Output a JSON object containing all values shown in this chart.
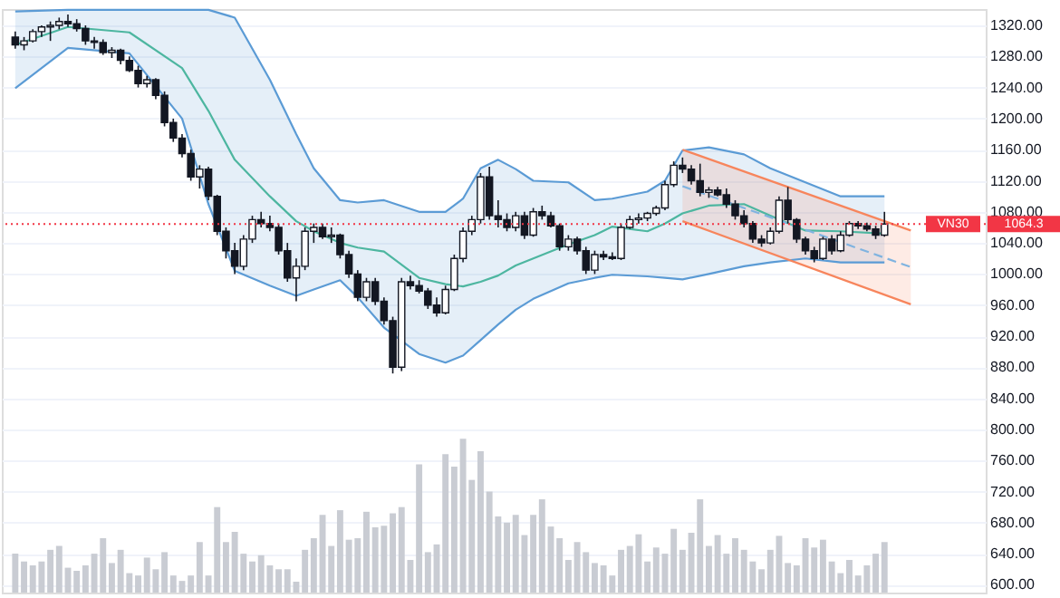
{
  "chart_data": {
    "type": "candlestick",
    "categories": [
      null,
      null,
      null,
      null,
      null,
      null,
      null,
      null,
      null,
      null,
      null,
      null,
      null,
      null,
      null,
      null,
      null,
      null,
      null,
      null,
      null,
      null,
      null,
      null,
      null,
      null,
      null,
      null,
      null,
      null,
      null,
      null,
      null,
      null,
      null,
      null,
      null,
      null,
      null,
      null,
      null,
      null,
      null,
      null,
      null,
      null,
      null,
      null,
      null,
      null,
      null,
      null,
      null,
      null,
      null,
      null,
      null,
      null,
      null,
      null,
      null,
      null,
      null,
      null,
      null,
      null,
      null,
      null,
      null,
      null,
      null,
      null,
      null,
      null,
      null,
      null,
      null,
      null,
      null,
      null,
      null,
      null,
      null,
      null,
      null,
      null,
      null,
      null,
      null,
      null,
      null,
      null,
      null,
      null,
      null,
      null,
      null,
      null,
      null,
      null,
      null,
      null,
      null,
      null,
      null,
      null,
      null,
      null,
      null,
      null
    ],
    "ylim": [
      590,
      1341
    ],
    "yticks": [
      {
        "value": 600,
        "label": "600.00"
      },
      {
        "value": 640,
        "label": "640.00"
      },
      {
        "value": 680,
        "label": "680.00"
      },
      {
        "value": 720,
        "label": "720.00"
      },
      {
        "value": 760,
        "label": "760.00"
      },
      {
        "value": 800,
        "label": "800.00"
      },
      {
        "value": 840,
        "label": "840.00"
      },
      {
        "value": 880,
        "label": "880.00"
      },
      {
        "value": 920,
        "label": "920.00"
      },
      {
        "value": 960,
        "label": "960.00"
      },
      {
        "value": 1000,
        "label": "1000.00"
      },
      {
        "value": 1040,
        "label": "1040.00"
      },
      {
        "value": 1080,
        "label": "1080.00"
      },
      {
        "value": 1120,
        "label": "1120.00"
      },
      {
        "value": 1160,
        "label": "1160.00"
      },
      {
        "value": 1200,
        "label": "1200.00"
      },
      {
        "value": 1240,
        "label": "1240.00"
      },
      {
        "value": 1280,
        "label": "1280.00"
      },
      {
        "value": 1320,
        "label": "1320.00"
      }
    ],
    "tick_labels": "y",
    "grid": "y",
    "ref_lines": [
      {
        "axis": "y",
        "value": 1064.3,
        "label": "VN30",
        "color": "#f23645",
        "line_style": "dotted"
      }
    ],
    "annotations": [
      "1064.3"
    ],
    "series": [
      {
        "type": "line",
        "color": "#5b9bd5",
        "values": [
          1338,
          null,
          null,
          null,
          null,
          null,
          1340,
          null,
          null,
          null,
          null,
          null,
          null,
          1340,
          null,
          null,
          null,
          null,
          null,
          1340,
          null,
          null,
          1340,
          null,
          null,
          1330,
          null,
          null,
          null,
          1250,
          null,
          null,
          1180,
          null,
          1136,
          null,
          null,
          1095,
          null,
          1092,
          null,
          null,
          1095,
          null,
          null,
          null,
          1080,
          null,
          null,
          1080,
          null,
          1097,
          null,
          1136,
          null,
          1147,
          null,
          1135,
          null,
          1120,
          null,
          null,
          null,
          1118,
          null,
          null,
          1095,
          null,
          1097,
          null,
          null,
          null,
          1106,
          null,
          1120,
          null,
          1159,
          null,
          null,
          1163,
          null,
          null,
          null,
          1154,
          null,
          null,
          1136,
          null,
          null,
          null,
          1118,
          null,
          null,
          null,
          1100,
          null,
          null,
          null,
          null,
          1100,
          null,
          null,
          null,
          null,
          null,
          null,
          null,
          null,
          null,
          null
        ],
        "lower": [
          1239,
          null,
          null,
          null,
          null,
          null,
          1291,
          null,
          null,
          null,
          null,
          null,
          null,
          1284,
          null,
          null,
          null,
          null,
          null,
          1200,
          null,
          null,
          1090,
          null,
          null,
          1004,
          null,
          null,
          null,
          985,
          null,
          null,
          972,
          null,
          980,
          null,
          null,
          992,
          null,
          970,
          null,
          null,
          931,
          null,
          null,
          null,
          897,
          null,
          null,
          886,
          null,
          895,
          null,
          915,
          null,
          935,
          null,
          954,
          null,
          968,
          null,
          null,
          null,
          988,
          null,
          null,
          995,
          null,
          999,
          null,
          null,
          null,
          997,
          null,
          995,
          null,
          993,
          null,
          null,
          1000,
          null,
          null,
          null,
          1010,
          null,
          null,
          1015,
          null,
          null,
          null,
          1020,
          null,
          null,
          null,
          1015,
          null,
          null,
          null,
          null,
          1015,
          null,
          null,
          null,
          null,
          null,
          null,
          null,
          null,
          null,
          null
        ],
        "upper": [
          1338,
          null,
          null,
          null,
          null,
          null,
          1340,
          null,
          null,
          null,
          null,
          null,
          null,
          1340,
          null,
          null,
          null,
          null,
          null,
          1340,
          null,
          null,
          1340,
          null,
          null,
          1330,
          null,
          null,
          null,
          1250,
          null,
          null,
          1180,
          null,
          1136,
          null,
          null,
          1095,
          null,
          1092,
          null,
          null,
          1095,
          null,
          null,
          null,
          1080,
          null,
          null,
          1080,
          null,
          1097,
          null,
          1136,
          null,
          1147,
          null,
          1135,
          null,
          1120,
          null,
          null,
          null,
          1118,
          null,
          null,
          1095,
          null,
          1097,
          null,
          null,
          null,
          1106,
          null,
          1120,
          null,
          1159,
          null,
          null,
          1163,
          null,
          null,
          null,
          1154,
          null,
          null,
          1136,
          null,
          null,
          null,
          1118,
          null,
          null,
          null,
          1100,
          null,
          null,
          null,
          null,
          1100,
          null,
          null,
          null,
          null,
          null,
          null,
          null,
          null,
          null,
          null
        ]
      },
      {
        "type": "line",
        "color": "#5b9bd5",
        "values": [
          1239,
          null,
          null,
          null,
          null,
          null,
          1291,
          null,
          null,
          null,
          null,
          null,
          null,
          1284,
          null,
          null,
          null,
          null,
          null,
          1200,
          null,
          null,
          1090,
          null,
          null,
          1004,
          null,
          null,
          null,
          985,
          null,
          null,
          972,
          null,
          980,
          null,
          null,
          992,
          null,
          970,
          null,
          null,
          931,
          null,
          null,
          null,
          897,
          null,
          null,
          886,
          null,
          895,
          null,
          915,
          null,
          935,
          null,
          954,
          null,
          968,
          null,
          null,
          null,
          988,
          null,
          null,
          995,
          null,
          999,
          null,
          null,
          null,
          997,
          null,
          995,
          null,
          993,
          null,
          null,
          1000,
          null,
          null,
          null,
          1010,
          null,
          null,
          1015,
          null,
          null,
          null,
          1020,
          null,
          null,
          null,
          1015,
          null,
          null,
          null,
          null,
          1015,
          null,
          null,
          null,
          null,
          null,
          null,
          null,
          null,
          null,
          null
        ]
      },
      {
        "type": "line",
        "color": "#4db6a0",
        "values": [
          1295,
          null,
          null,
          null,
          null,
          null,
          1318,
          null,
          null,
          null,
          null,
          null,
          null,
          1311,
          null,
          null,
          null,
          null,
          null,
          1265,
          null,
          null,
          1210,
          null,
          null,
          1147,
          null,
          null,
          null,
          1100,
          null,
          null,
          1068,
          null,
          1055,
          null,
          null,
          1040,
          null,
          1034,
          null,
          null,
          1029,
          null,
          null,
          null,
          995,
          null,
          null,
          987,
          null,
          984,
          null,
          990,
          null,
          998,
          null,
          1011,
          null,
          1020,
          null,
          null,
          null,
          1038,
          null,
          null,
          1050,
          null,
          1061,
          null,
          null,
          null,
          1055,
          null,
          1065,
          null,
          1078,
          null,
          null,
          1088,
          null,
          null,
          null,
          1090,
          null,
          null,
          1075,
          null,
          null,
          null,
          1056,
          null,
          null,
          null,
          1055,
          null,
          null,
          null,
          null,
          1052,
          null,
          null,
          null,
          null,
          null,
          null,
          null,
          null,
          null,
          null
        ]
      },
      {
        "type": "line",
        "color": "#f7855c",
        "values": [
          null,
          null,
          null,
          null,
          null,
          null,
          null,
          null,
          null,
          null,
          null,
          null,
          null,
          null,
          null,
          null,
          null,
          null,
          null,
          null,
          null,
          null,
          null,
          null,
          null,
          null,
          null,
          null,
          null,
          null,
          null,
          null,
          null,
          null,
          null,
          null,
          null,
          null,
          null,
          null,
          null,
          null,
          null,
          null,
          null,
          null,
          null,
          null,
          null,
          null,
          null,
          null,
          null,
          null,
          null,
          null,
          null,
          null,
          null,
          null,
          null,
          null,
          null,
          null,
          null,
          null,
          null,
          null,
          null,
          null,
          null,
          null,
          null,
          null,
          null,
          null,
          1160,
          null,
          null,
          null,
          null,
          null,
          null,
          null,
          null,
          null,
          null,
          null,
          null,
          null,
          null,
          null,
          null,
          null,
          null,
          null,
          null,
          null,
          null,
          null,
          null,
          null,
          1056,
          null,
          null,
          null,
          null,
          null,
          null,
          null
        ],
        "lower": [
          null,
          null,
          null,
          null,
          null,
          null,
          null,
          null,
          null,
          null,
          null,
          null,
          null,
          null,
          null,
          null,
          null,
          null,
          null,
          null,
          null,
          null,
          null,
          null,
          null,
          null,
          null,
          null,
          null,
          null,
          null,
          null,
          null,
          null,
          null,
          null,
          null,
          null,
          null,
          null,
          null,
          null,
          null,
          null,
          null,
          null,
          null,
          null,
          null,
          null,
          null,
          null,
          null,
          null,
          null,
          null,
          null,
          null,
          null,
          null,
          null,
          null,
          null,
          null,
          null,
          null,
          null,
          null,
          null,
          null,
          null,
          null,
          null,
          null,
          null,
          null,
          1068,
          null,
          null,
          null,
          null,
          null,
          null,
          null,
          null,
          null,
          null,
          null,
          null,
          null,
          null,
          null,
          null,
          null,
          null,
          null,
          null,
          null,
          null,
          null,
          null,
          null,
          961,
          null,
          null,
          null,
          null,
          null,
          null,
          null
        ],
        "upper": [
          null,
          null,
          null,
          null,
          null,
          null,
          null,
          null,
          null,
          null,
          null,
          null,
          null,
          null,
          null,
          null,
          null,
          null,
          null,
          null,
          null,
          null,
          null,
          null,
          null,
          null,
          null,
          null,
          null,
          null,
          null,
          null,
          null,
          null,
          null,
          null,
          null,
          null,
          null,
          null,
          null,
          null,
          null,
          null,
          null,
          null,
          null,
          null,
          null,
          null,
          null,
          null,
          null,
          null,
          null,
          null,
          null,
          null,
          null,
          null,
          null,
          null,
          null,
          null,
          null,
          null,
          null,
          null,
          null,
          null,
          null,
          null,
          null,
          null,
          null,
          null,
          1160,
          null,
          null,
          null,
          null,
          null,
          null,
          null,
          null,
          null,
          null,
          null,
          null,
          null,
          null,
          null,
          null,
          null,
          null,
          null,
          null,
          null,
          null,
          null,
          null,
          null,
          1056,
          null,
          null,
          null,
          null,
          null,
          null,
          null
        ]
      },
      {
        "type": "line",
        "color": "#f7855c",
        "values": [
          null,
          null,
          null,
          null,
          null,
          null,
          null,
          null,
          null,
          null,
          null,
          null,
          null,
          null,
          null,
          null,
          null,
          null,
          null,
          null,
          null,
          null,
          null,
          null,
          null,
          null,
          null,
          null,
          null,
          null,
          null,
          null,
          null,
          null,
          null,
          null,
          null,
          null,
          null,
          null,
          null,
          null,
          null,
          null,
          null,
          null,
          null,
          null,
          null,
          null,
          null,
          null,
          null,
          null,
          null,
          null,
          null,
          null,
          null,
          null,
          null,
          null,
          null,
          null,
          null,
          null,
          null,
          null,
          null,
          null,
          null,
          null,
          null,
          null,
          null,
          null,
          1068,
          null,
          null,
          null,
          null,
          null,
          null,
          null,
          null,
          null,
          null,
          null,
          null,
          null,
          null,
          null,
          null,
          null,
          null,
          null,
          null,
          null,
          null,
          null,
          null,
          null,
          961,
          null,
          null,
          null,
          null,
          null,
          null,
          null
        ]
      },
      {
        "type": "line",
        "color": "#7fb3e0",
        "line_style": "dashed",
        "values": [
          null,
          null,
          null,
          null,
          null,
          null,
          null,
          null,
          null,
          null,
          null,
          null,
          null,
          null,
          null,
          null,
          null,
          null,
          null,
          null,
          null,
          null,
          null,
          null,
          null,
          null,
          null,
          null,
          null,
          null,
          null,
          null,
          null,
          null,
          null,
          null,
          null,
          null,
          null,
          null,
          null,
          null,
          null,
          null,
          null,
          null,
          null,
          null,
          null,
          null,
          null,
          null,
          null,
          null,
          null,
          null,
          null,
          null,
          null,
          null,
          null,
          null,
          null,
          null,
          null,
          null,
          null,
          null,
          null,
          null,
          null,
          null,
          null,
          null,
          null,
          null,
          1113,
          null,
          null,
          null,
          null,
          null,
          null,
          null,
          null,
          null,
          null,
          null,
          null,
          null,
          null,
          null,
          null,
          null,
          null,
          null,
          null,
          null,
          null,
          null,
          null,
          null,
          1009,
          null,
          null,
          null,
          null,
          null,
          null,
          null
        ]
      },
      {
        "type": "bar",
        "color": "#c9ccd3",
        "values": [
          640,
          630,
          625,
          630,
          645,
          650,
          622,
          618,
          625,
          640,
          660,
          628,
          645,
          615,
          612,
          635,
          620,
          642,
          612,
          605,
          612,
          655,
          612,
          700,
          655,
          668,
          640,
          630,
          638,
          625,
          620,
          620,
          604,
          645,
          660,
          690,
          650,
          696,
          658,
          660,
          694,
          674,
          676,
          692,
          700,
          632,
          755,
          642,
          652,
          768,
          752,
          788,
          735,
          772,
          720,
          688,
          680,
          690,
          664,
          690,
          710,
          675,
          660,
          632,
          655,
          642,
          628,
          625,
          612,
          645,
          650,
          665,
          630,
          648,
          640,
          672,
          645,
          667,
          710,
          650,
          664,
          640,
          660,
          645,
          630,
          620,
          645,
          663,
          628,
          625,
          660,
          648,
          658,
          630,
          615,
          632,
          612,
          625,
          640,
          655,
          null,
          null,
          null,
          null,
          null,
          null,
          null,
          null,
          null,
          null
        ]
      },
      {
        "color": "#131722",
        "ohlc": [
          [
            1305,
            1312,
            1290,
            1295
          ],
          [
            1295,
            1305,
            1288,
            1300
          ],
          [
            1300,
            1315,
            1298,
            1312
          ],
          [
            1312,
            1320,
            1305,
            1318
          ],
          [
            1318,
            1325,
            1300,
            1320
          ],
          [
            1320,
            1330,
            1315,
            1325
          ],
          [
            1325,
            1334,
            1318,
            1322
          ],
          [
            1322,
            1328,
            1312,
            1316
          ],
          [
            1316,
            1320,
            1295,
            1300
          ],
          [
            1300,
            1305,
            1290,
            1298
          ],
          [
            1298,
            1302,
            1282,
            1285
          ],
          [
            1285,
            1292,
            1278,
            1288
          ],
          [
            1288,
            1290,
            1270,
            1275
          ],
          [
            1275,
            1280,
            1260,
            1262
          ],
          [
            1262,
            1268,
            1240,
            1245
          ],
          [
            1245,
            1255,
            1240,
            1250
          ],
          [
            1250,
            1252,
            1225,
            1230
          ],
          [
            1230,
            1235,
            1190,
            1195
          ],
          [
            1195,
            1200,
            1170,
            1175
          ],
          [
            1175,
            1180,
            1150,
            1155
          ],
          [
            1155,
            1160,
            1120,
            1125
          ],
          [
            1125,
            1140,
            1110,
            1135
          ],
          [
            1135,
            1138,
            1095,
            1100
          ],
          [
            1100,
            1102,
            1050,
            1055
          ],
          [
            1055,
            1060,
            1020,
            1030
          ],
          [
            1030,
            1040,
            1000,
            1010
          ],
          [
            1010,
            1050,
            1005,
            1045
          ],
          [
            1045,
            1075,
            1040,
            1070
          ],
          [
            1070,
            1080,
            1060,
            1065
          ],
          [
            1065,
            1075,
            1055,
            1060
          ],
          [
            1060,
            1065,
            1025,
            1030
          ],
          [
            1030,
            1040,
            990,
            995
          ],
          [
            995,
            1020,
            965,
            1010
          ],
          [
            1010,
            1060,
            1005,
            1055
          ],
          [
            1055,
            1065,
            1040,
            1060
          ],
          [
            1060,
            1065,
            1045,
            1048
          ],
          [
            1048,
            1060,
            1040,
            1050
          ],
          [
            1050,
            1052,
            1020,
            1025
          ],
          [
            1025,
            1030,
            995,
            1000
          ],
          [
            1000,
            1005,
            965,
            970
          ],
          [
            970,
            995,
            965,
            990
          ],
          [
            990,
            995,
            960,
            965
          ],
          [
            965,
            970,
            935,
            940
          ],
          [
            940,
            945,
            872,
            880
          ],
          [
            880,
            995,
            875,
            990
          ],
          [
            990,
            998,
            980,
            985
          ],
          [
            985,
            992,
            975,
            978
          ],
          [
            978,
            982,
            955,
            960
          ],
          [
            960,
            970,
            945,
            950
          ],
          [
            950,
            985,
            948,
            980
          ],
          [
            980,
            1025,
            978,
            1020
          ],
          [
            1020,
            1060,
            1015,
            1055
          ],
          [
            1055,
            1075,
            1050,
            1070
          ],
          [
            1070,
            1130,
            1065,
            1125
          ],
          [
            1125,
            1138,
            1070,
            1075
          ],
          [
            1075,
            1095,
            1060,
            1070
          ],
          [
            1070,
            1078,
            1055,
            1060
          ],
          [
            1060,
            1080,
            1055,
            1075
          ],
          [
            1075,
            1080,
            1045,
            1050
          ],
          [
            1050,
            1085,
            1048,
            1080
          ],
          [
            1080,
            1088,
            1070,
            1075
          ],
          [
            1075,
            1080,
            1060,
            1062
          ],
          [
            1062,
            1065,
            1030,
            1035
          ],
          [
            1035,
            1050,
            1030,
            1045
          ],
          [
            1045,
            1048,
            1025,
            1030
          ],
          [
            1030,
            1035,
            1000,
            1005
          ],
          [
            1005,
            1030,
            1000,
            1025
          ],
          [
            1025,
            1030,
            1018,
            1022
          ],
          [
            1022,
            1028,
            1018,
            1020
          ],
          [
            1020,
            1065,
            1018,
            1060
          ],
          [
            1060,
            1075,
            1058,
            1070
          ],
          [
            1070,
            1078,
            1065,
            1072
          ],
          [
            1072,
            1080,
            1068,
            1078
          ],
          [
            1078,
            1088,
            1075,
            1085
          ],
          [
            1085,
            1120,
            1082,
            1115
          ],
          [
            1115,
            1145,
            1112,
            1140
          ],
          [
            1140,
            1150,
            1130,
            1135
          ],
          [
            1135,
            1140,
            1115,
            1120
          ],
          [
            1120,
            1142,
            1100,
            1105
          ],
          [
            1105,
            1112,
            1098,
            1108
          ],
          [
            1108,
            1112,
            1100,
            1102
          ],
          [
            1102,
            1110,
            1085,
            1090
          ],
          [
            1090,
            1095,
            1070,
            1075
          ],
          [
            1075,
            1082,
            1060,
            1065
          ],
          [
            1065,
            1068,
            1040,
            1045
          ],
          [
            1045,
            1050,
            1035,
            1040
          ],
          [
            1040,
            1060,
            1038,
            1055
          ],
          [
            1055,
            1100,
            1052,
            1095
          ],
          [
            1095,
            1112,
            1065,
            1070
          ],
          [
            1070,
            1072,
            1040,
            1045
          ],
          [
            1045,
            1048,
            1025,
            1030
          ],
          [
            1030,
            1035,
            1015,
            1020
          ],
          [
            1020,
            1048,
            1018,
            1045
          ],
          [
            1045,
            1050,
            1025,
            1030
          ],
          [
            1030,
            1055,
            1028,
            1050
          ],
          [
            1050,
            1068,
            1048,
            1065
          ],
          [
            1065,
            1068,
            1058,
            1062
          ],
          [
            1062,
            1066,
            1055,
            1058
          ],
          [
            1058,
            1062,
            1045,
            1050
          ],
          [
            1050,
            1080,
            1048,
            1064.3
          ],
          null,
          null,
          null,
          null,
          null,
          null,
          null,
          null,
          null,
          null
        ]
      }
    ]
  }
}
